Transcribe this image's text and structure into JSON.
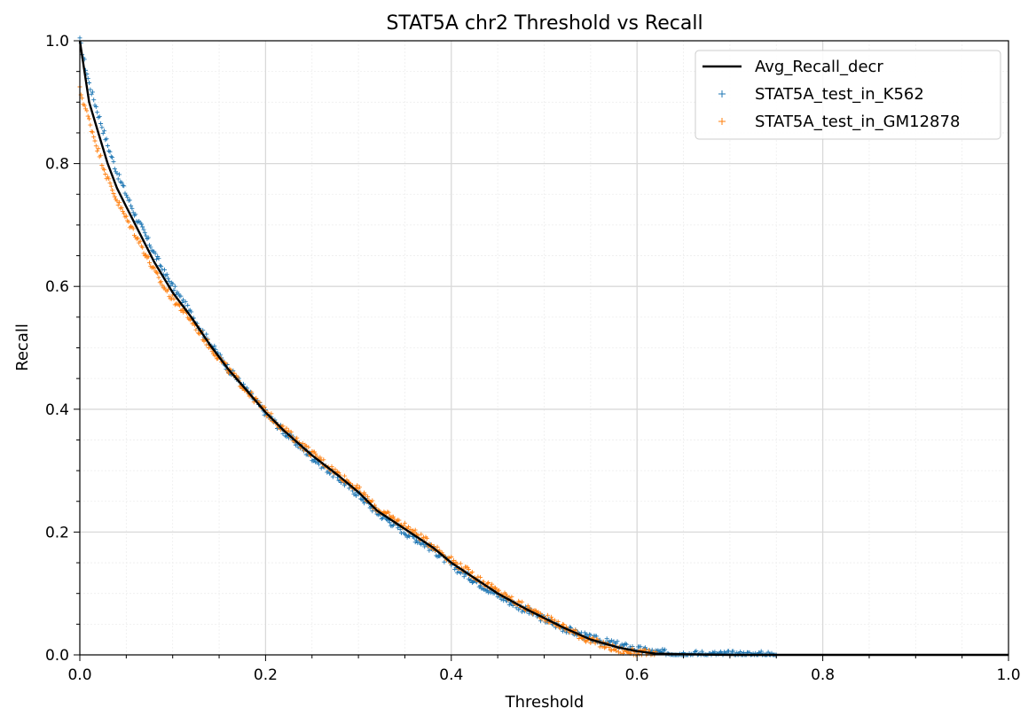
{
  "chart_data": {
    "type": "line",
    "title": "STAT5A chr2 Threshold vs Recall",
    "xlabel": "Threshold",
    "ylabel": "Recall",
    "xlim": [
      0.0,
      1.0
    ],
    "ylim": [
      0.0,
      1.0
    ],
    "xticks": [
      "0.0",
      "0.2",
      "0.4",
      "0.6",
      "0.8",
      "1.0"
    ],
    "yticks": [
      "0.0",
      "0.2",
      "0.4",
      "0.6",
      "0.8",
      "1.0"
    ],
    "grid": true,
    "legend_position": "top-right",
    "series": [
      {
        "name": "Avg_Recall_decr",
        "style": "line",
        "color": "#000000",
        "x": [
          0.0,
          0.01,
          0.02,
          0.03,
          0.04,
          0.05,
          0.06,
          0.07,
          0.08,
          0.09,
          0.1,
          0.12,
          0.14,
          0.16,
          0.18,
          0.2,
          0.22,
          0.25,
          0.28,
          0.3,
          0.32,
          0.35,
          0.38,
          0.4,
          0.42,
          0.45,
          0.48,
          0.5,
          0.52,
          0.55,
          0.58,
          0.6,
          0.62,
          0.65,
          0.7,
          0.8,
          0.9,
          1.0
        ],
        "y": [
          1.0,
          0.9,
          0.85,
          0.8,
          0.76,
          0.73,
          0.7,
          0.67,
          0.64,
          0.615,
          0.59,
          0.55,
          0.505,
          0.465,
          0.43,
          0.395,
          0.365,
          0.325,
          0.29,
          0.265,
          0.235,
          0.205,
          0.175,
          0.15,
          0.13,
          0.1,
          0.075,
          0.06,
          0.045,
          0.025,
          0.012,
          0.006,
          0.002,
          0.001,
          0.0,
          0.0,
          0.0,
          0.0
        ]
      },
      {
        "name": "STAT5A_test_in_K562",
        "style": "scatter",
        "marker": "+",
        "color": "#1f77b4",
        "x": [
          0.0,
          0.01,
          0.02,
          0.03,
          0.04,
          0.05,
          0.06,
          0.07,
          0.08,
          0.09,
          0.1,
          0.12,
          0.14,
          0.16,
          0.18,
          0.2,
          0.22,
          0.25,
          0.28,
          0.3,
          0.32,
          0.35,
          0.38,
          0.4,
          0.42,
          0.45,
          0.48,
          0.5,
          0.52,
          0.55,
          0.58,
          0.6,
          0.62,
          0.65,
          0.68,
          0.72,
          0.75
        ],
        "y": [
          1.0,
          0.93,
          0.88,
          0.83,
          0.785,
          0.75,
          0.715,
          0.685,
          0.655,
          0.625,
          0.6,
          0.555,
          0.508,
          0.466,
          0.43,
          0.394,
          0.363,
          0.322,
          0.286,
          0.261,
          0.232,
          0.2,
          0.172,
          0.146,
          0.126,
          0.097,
          0.073,
          0.058,
          0.044,
          0.027,
          0.016,
          0.009,
          0.004,
          0.002,
          0.001,
          0.0005,
          0.0002
        ]
      },
      {
        "name": "STAT5A_test_in_GM12878",
        "style": "scatter",
        "marker": "+",
        "color": "#ff7f0e",
        "x": [
          0.0,
          0.01,
          0.02,
          0.03,
          0.04,
          0.05,
          0.06,
          0.07,
          0.08,
          0.09,
          0.1,
          0.12,
          0.14,
          0.16,
          0.18,
          0.2,
          0.22,
          0.25,
          0.28,
          0.3,
          0.32,
          0.35,
          0.38,
          0.4,
          0.42,
          0.45,
          0.48,
          0.5,
          0.52,
          0.55,
          0.58,
          0.6,
          0.62
        ],
        "y": [
          0.92,
          0.87,
          0.82,
          0.775,
          0.74,
          0.71,
          0.685,
          0.655,
          0.625,
          0.6,
          0.58,
          0.545,
          0.502,
          0.464,
          0.43,
          0.396,
          0.367,
          0.328,
          0.293,
          0.269,
          0.238,
          0.21,
          0.178,
          0.154,
          0.134,
          0.103,
          0.077,
          0.062,
          0.046,
          0.023,
          0.008,
          0.003,
          0.001
        ]
      }
    ]
  }
}
